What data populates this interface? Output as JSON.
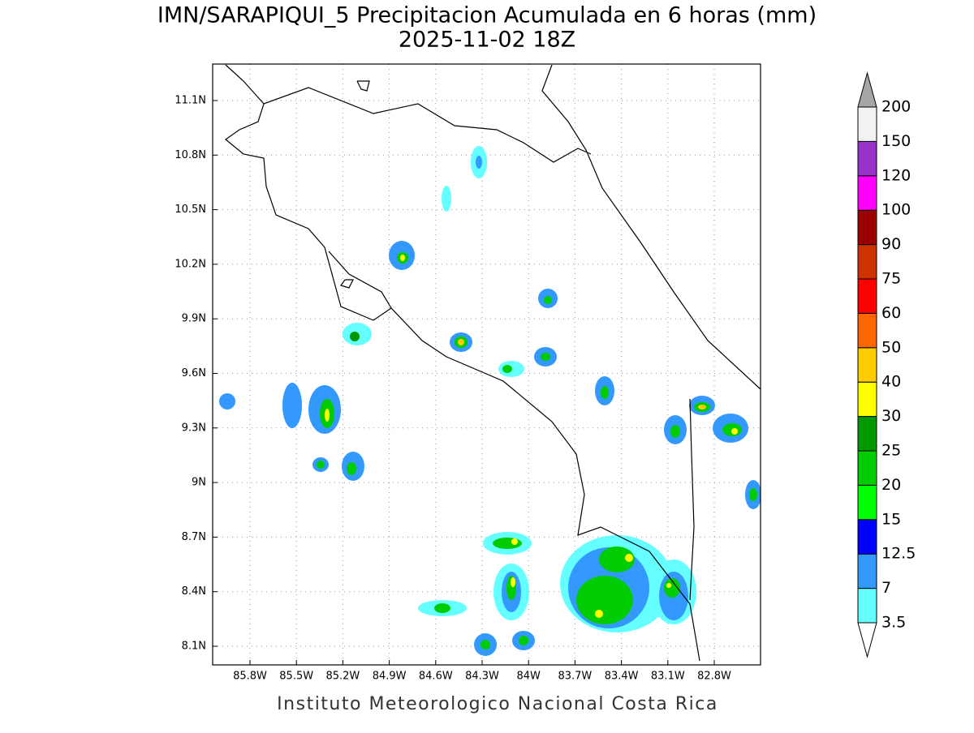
{
  "title": "IMN/SARAPIQUI_5 Precipitacion Acumulada en 6 horas (mm)",
  "subtitle": "2025-11-02 18Z",
  "footer": "Instituto Meteorologico Nacional Costa Rica",
  "map": {
    "lon_ticks": [
      {
        "value": -85.8,
        "label": "85.8W"
      },
      {
        "value": -85.5,
        "label": "85.5W"
      },
      {
        "value": -85.2,
        "label": "85.2W"
      },
      {
        "value": -84.9,
        "label": "84.9W"
      },
      {
        "value": -84.6,
        "label": "84.6W"
      },
      {
        "value": -84.3,
        "label": "84.3W"
      },
      {
        "value": -84.0,
        "label": "84W"
      },
      {
        "value": -83.7,
        "label": "83.7W"
      },
      {
        "value": -83.4,
        "label": "83.4W"
      },
      {
        "value": -83.1,
        "label": "83.1W"
      },
      {
        "value": -82.8,
        "label": "82.8W"
      }
    ],
    "lat_ticks": [
      {
        "value": 11.1,
        "label": "11.1N"
      },
      {
        "value": 10.8,
        "label": "10.8N"
      },
      {
        "value": 10.5,
        "label": "10.5N"
      },
      {
        "value": 10.2,
        "label": "10.2N"
      },
      {
        "value": 9.9,
        "label": "9.9N"
      },
      {
        "value": 9.6,
        "label": "9.6N"
      },
      {
        "value": 9.3,
        "label": "9.3N"
      },
      {
        "value": 9.0,
        "label": "9N"
      },
      {
        "value": 8.7,
        "label": "8.7N"
      },
      {
        "value": 8.4,
        "label": "8.4N"
      },
      {
        "value": 8.1,
        "label": "8.1N"
      }
    ]
  },
  "colorbar": {
    "labels": [
      "3.5",
      "7",
      "12.5",
      "15",
      "20",
      "25",
      "30",
      "40",
      "50",
      "60",
      "75",
      "90",
      "100",
      "120",
      "150",
      "200"
    ],
    "colors": [
      "#66ffff",
      "#3399ff",
      "#0000ff",
      "#00ff00",
      "#00cc00",
      "#009900",
      "#ffff00",
      "#ffcc00",
      "#ff6600",
      "#ff0000",
      "#cc3300",
      "#990000",
      "#ff00ff",
      "#9933cc",
      "#f2f2f2"
    ],
    "under_color": "#ffffff",
    "over_color": "#a6a6a6"
  }
}
